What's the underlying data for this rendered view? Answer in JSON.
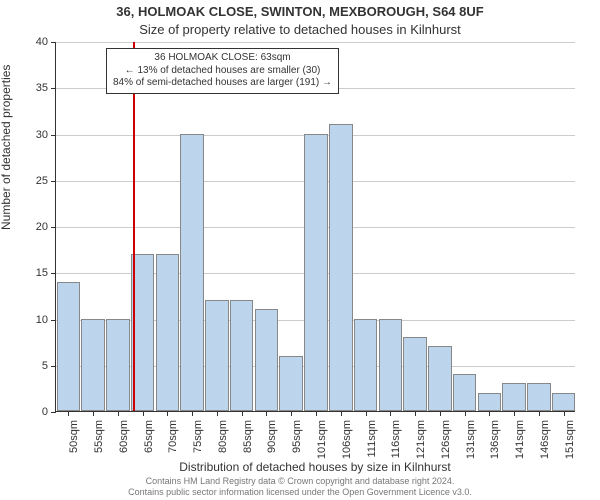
{
  "title_main": "36, HOLMOAK CLOSE, SWINTON, MEXBOROUGH, S64 8UF",
  "title_sub": "Size of property relative to detached houses in Kilnhurst",
  "ylabel": "Number of detached properties",
  "xlabel": "Distribution of detached houses by size in Kilnhurst",
  "y_axis": {
    "min": 0,
    "max": 40,
    "step": 5,
    "grid_color": "#cccccc"
  },
  "bar_color": "#bcd5ec",
  "bar_border": "#888888",
  "categories": [
    "50sqm",
    "55sqm",
    "60sqm",
    "65sqm",
    "70sqm",
    "75sqm",
    "80sqm",
    "85sqm",
    "90sqm",
    "95sqm",
    "101sqm",
    "106sqm",
    "111sqm",
    "116sqm",
    "121sqm",
    "126sqm",
    "131sqm",
    "136sqm",
    "141sqm",
    "146sqm",
    "151sqm"
  ],
  "values": [
    14,
    10,
    10,
    17,
    17,
    30,
    12,
    12,
    11,
    6,
    30,
    31,
    10,
    10,
    8,
    7,
    4,
    2,
    3,
    3,
    2
  ],
  "ref_line": {
    "position_index": 2.6,
    "color": "#cc0000"
  },
  "annotation": {
    "line1": "36 HOLMOAK CLOSE: 63sqm",
    "line2": "← 13% of detached houses are smaller (30)",
    "line3": "84% of semi-detached houses are larger (191) →"
  },
  "credits": {
    "line1": "Contains HM Land Registry data © Crown copyright and database right 2024.",
    "line2": "Contains public sector information licensed under the Open Government Licence v3.0."
  }
}
